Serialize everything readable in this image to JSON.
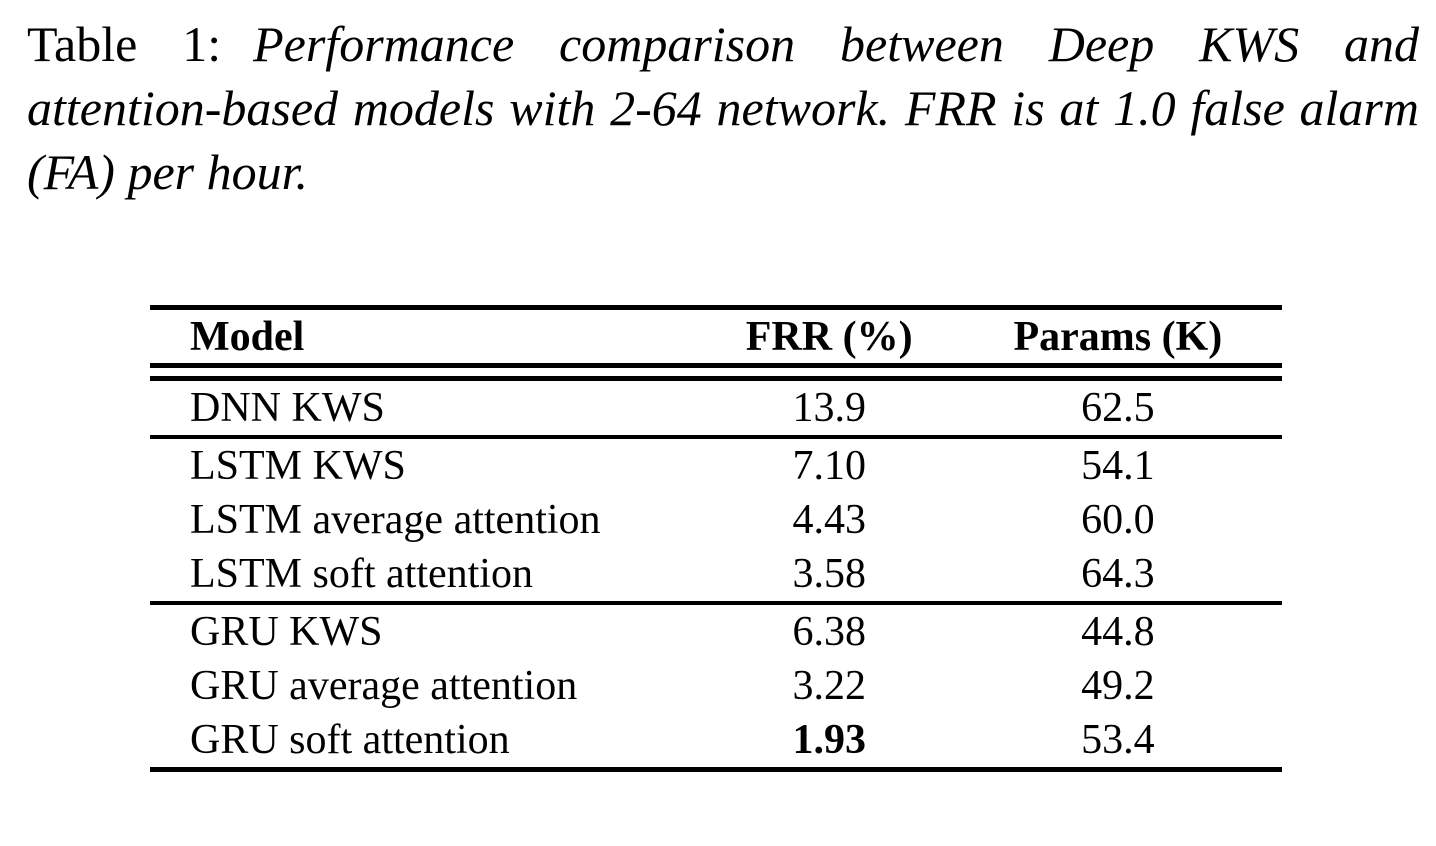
{
  "caption": {
    "label": "Table 1:",
    "text": "Performance comparison between Deep KWS and attention-based models with 2-64 network. FRR is at 1.0 false alarm (FA) per hour."
  },
  "table": {
    "headers": {
      "model": "Model",
      "frr": "FRR (%)",
      "params": "Params (K)"
    },
    "groups": [
      {
        "rows": [
          {
            "model": "DNN KWS",
            "frr": "13.9",
            "params": "62.5",
            "frr_bold": false
          }
        ]
      },
      {
        "rows": [
          {
            "model": "LSTM KWS",
            "frr": "7.10",
            "params": "54.1",
            "frr_bold": false
          },
          {
            "model": "LSTM average attention",
            "frr": "4.43",
            "params": "60.0",
            "frr_bold": false
          },
          {
            "model": "LSTM soft attention",
            "frr": "3.58",
            "params": "64.3",
            "frr_bold": false
          }
        ]
      },
      {
        "rows": [
          {
            "model": "GRU KWS",
            "frr": "6.38",
            "params": "44.8",
            "frr_bold": false
          },
          {
            "model": "GRU average attention",
            "frr": "3.22",
            "params": "49.2",
            "frr_bold": false
          },
          {
            "model": "GRU soft attention",
            "frr": "1.93",
            "params": "53.4",
            "frr_bold": true
          }
        ]
      }
    ]
  },
  "chart_data": {
    "type": "table",
    "title": "Table 1: Performance comparison between Deep KWS and attention-based models with 2-64 network. FRR is at 1.0 false alarm (FA) per hour.",
    "columns": [
      "Model",
      "FRR (%)",
      "Params (K)"
    ],
    "rows": [
      [
        "DNN KWS",
        13.9,
        62.5
      ],
      [
        "LSTM KWS",
        7.1,
        54.1
      ],
      [
        "LSTM average attention",
        4.43,
        60.0
      ],
      [
        "LSTM soft attention",
        3.58,
        64.3
      ],
      [
        "GRU KWS",
        6.38,
        44.8
      ],
      [
        "GRU average attention",
        3.22,
        49.2
      ],
      [
        "GRU soft attention",
        1.93,
        53.4
      ]
    ],
    "emphasis": "FRR value 1.93 (GRU soft attention) rendered in bold"
  },
  "colors": {
    "text": "#000000",
    "background": "#ffffff",
    "rule": "#000000"
  }
}
